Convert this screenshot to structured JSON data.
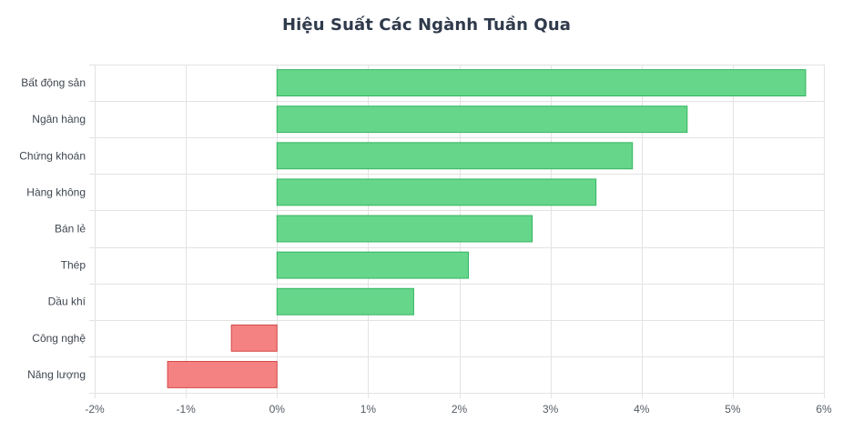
{
  "chart_data": {
    "type": "bar",
    "orientation": "horizontal",
    "title": "Hiệu Suất Các Ngành Tuần Qua",
    "categories": [
      "Bất động sản",
      "Ngân hàng",
      "Chứng khoán",
      "Hàng không",
      "Bán lẻ",
      "Thép",
      "Dầu khí",
      "Công nghệ",
      "Năng lượng"
    ],
    "values": [
      5.8,
      4.5,
      3.9,
      3.5,
      2.8,
      2.1,
      1.5,
      -0.5,
      -1.2
    ],
    "xlim": [
      -2,
      6
    ],
    "x_ticks": [
      -2,
      -1,
      0,
      1,
      2,
      3,
      4,
      5,
      6
    ],
    "x_tick_labels": [
      "-2%",
      "-1%",
      "0%",
      "1%",
      "2%",
      "3%",
      "4%",
      "5%",
      "6%"
    ],
    "grid": true,
    "colors": {
      "positive_fill": "#66d68b",
      "positive_stroke": "#34b560",
      "negative_fill": "#f58282",
      "negative_stroke": "#d54848",
      "grid": "#e3e3e3",
      "axis": "#cfcfcf"
    }
  }
}
